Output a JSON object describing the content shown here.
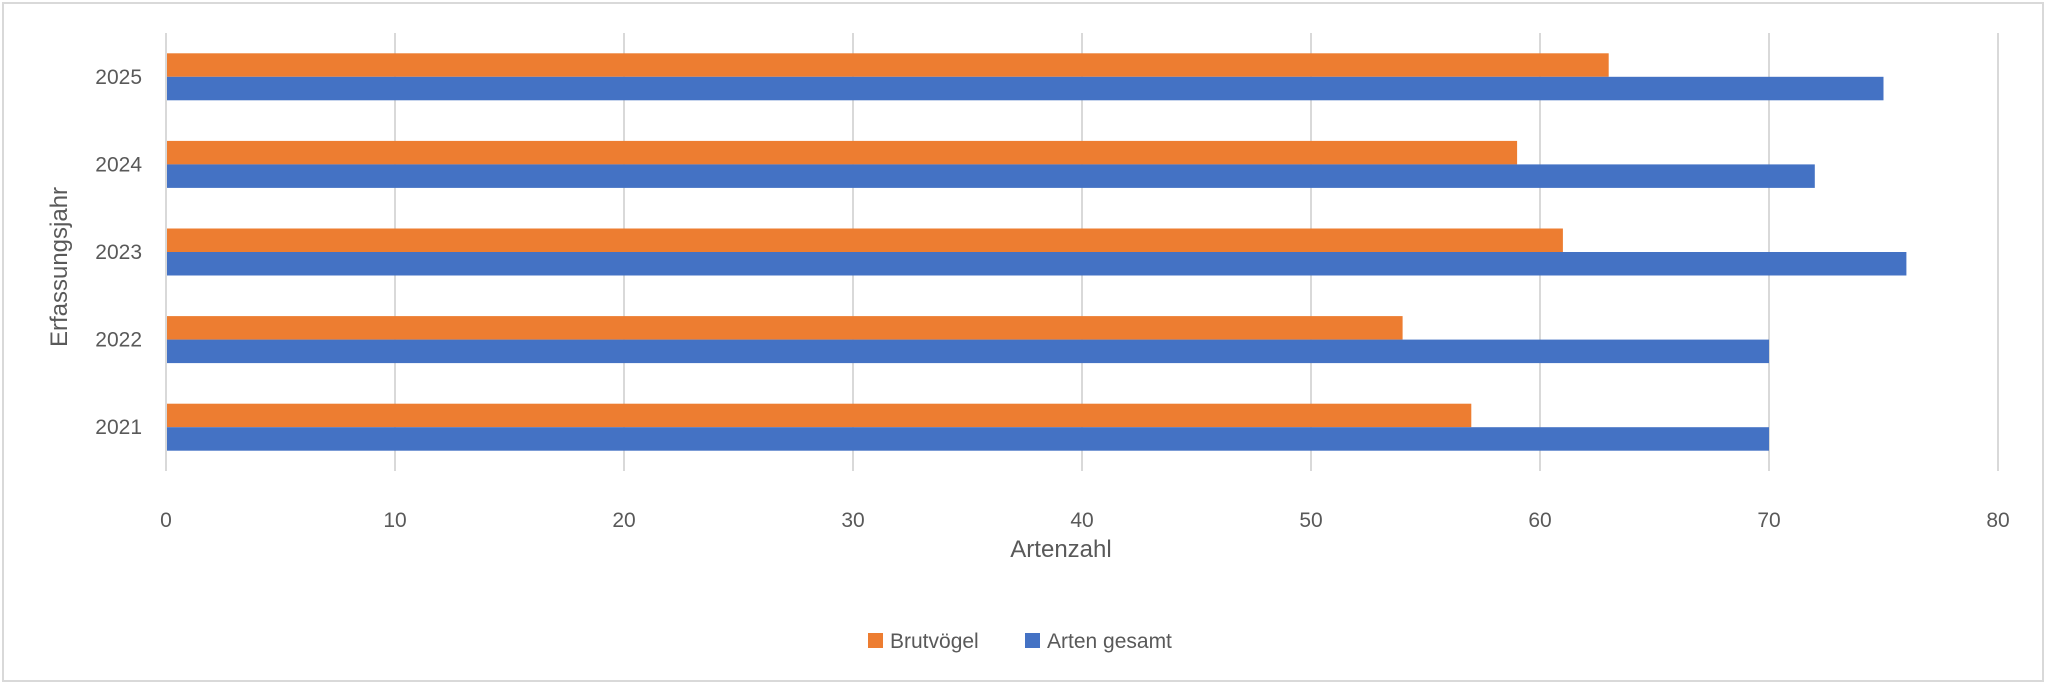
{
  "chart_data": {
    "type": "bar",
    "orientation": "horizontal",
    "categories": [
      "2021",
      "2022",
      "2023",
      "2024",
      "2025"
    ],
    "series": [
      {
        "name": "Brutvögel",
        "color": "#ED7D31",
        "values": [
          57,
          54,
          61,
          59,
          63
        ]
      },
      {
        "name": "Arten gesamt",
        "color": "#4472C4",
        "values": [
          70,
          70,
          76,
          72,
          75
        ]
      }
    ],
    "xlabel": "Artenzahl",
    "ylabel": "Erfassungsjahr",
    "xlim": [
      0,
      80
    ],
    "xticks": [
      "0",
      "10",
      "20",
      "30",
      "40",
      "50",
      "60",
      "70",
      "80"
    ],
    "grid": "vertical",
    "legend": "bottom"
  }
}
